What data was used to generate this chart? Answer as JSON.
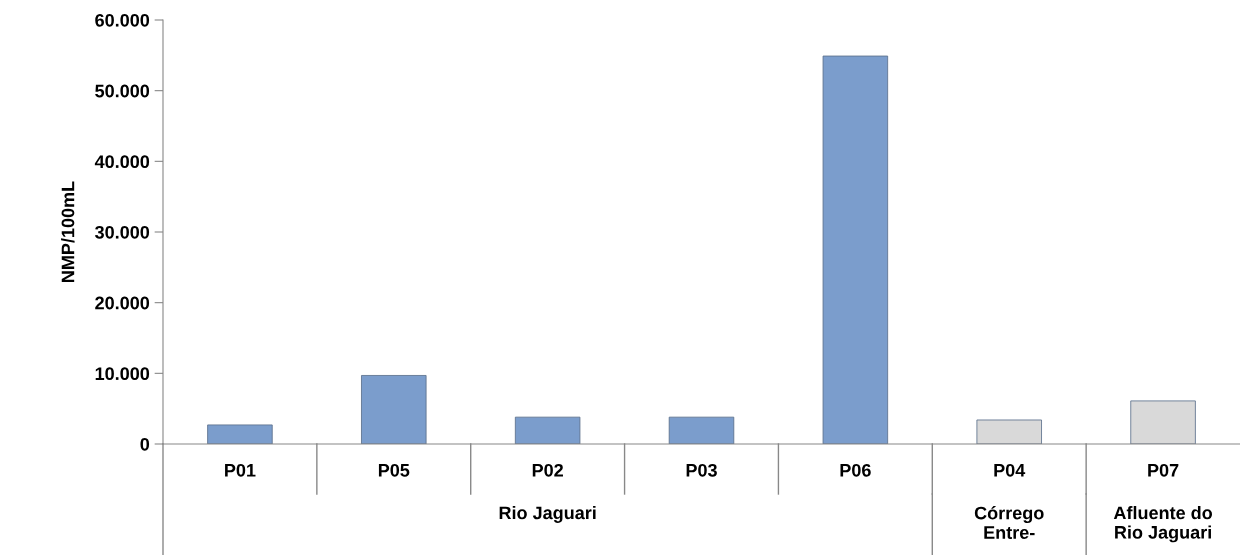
{
  "chart_data": {
    "type": "bar",
    "ylabel": "NMP/100mL",
    "categories": [
      "P01",
      "P05",
      "P02",
      "P03",
      "P06",
      "P04",
      "P07"
    ],
    "values": [
      2700,
      9700,
      3800,
      3800,
      54900,
      3400,
      6100
    ],
    "colors": [
      "#7b9dcc",
      "#7b9dcc",
      "#7b9dcc",
      "#7b9dcc",
      "#7b9dcc",
      "#d9d9d9",
      "#d9d9d9"
    ],
    "ylim": [
      0,
      60000
    ],
    "yticks": [
      {
        "value": 0,
        "label": "0"
      },
      {
        "value": 10000,
        "label": "10.000"
      },
      {
        "value": 20000,
        "label": "20.000"
      },
      {
        "value": 30000,
        "label": "30.000"
      },
      {
        "value": 40000,
        "label": "40.000"
      },
      {
        "value": 50000,
        "label": "50.000"
      },
      {
        "value": 60000,
        "label": "60.000"
      }
    ],
    "annotations": [
      "Rio Jaguari",
      "Córrego\nEntre-",
      "Afluente do\nRio Jaguari"
    ],
    "grid": false,
    "legend": false
  }
}
